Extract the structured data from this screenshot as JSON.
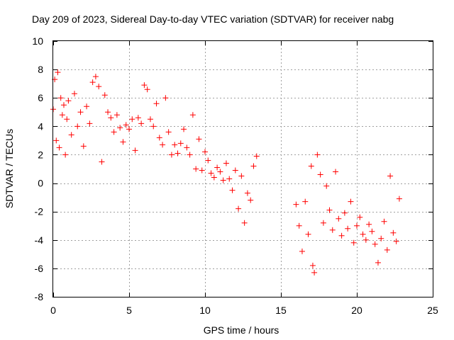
{
  "chart_data": {
    "type": "scatter",
    "title": "Day 209 of 2023, Sidereal Day-to-day VTEC variation (SDTVAR) for receiver nabg",
    "xlabel": "GPS time / hours",
    "ylabel": "SDTVAR / TECUs",
    "xlim": [
      0,
      25
    ],
    "ylim": [
      -8,
      10
    ],
    "xticks": [
      0,
      5,
      10,
      15,
      20,
      25
    ],
    "yticks": [
      -8,
      -6,
      -4,
      -2,
      0,
      2,
      4,
      6,
      8,
      10
    ],
    "grid": true,
    "marker": "+",
    "color": "#ff0000",
    "series": [
      {
        "name": "SDTVAR",
        "points": [
          [
            0.0,
            5.2
          ],
          [
            0.1,
            7.3
          ],
          [
            0.2,
            3.0
          ],
          [
            0.3,
            7.8
          ],
          [
            0.4,
            2.5
          ],
          [
            0.5,
            6.0
          ],
          [
            0.6,
            4.8
          ],
          [
            0.7,
            5.5
          ],
          [
            0.8,
            2.0
          ],
          [
            0.9,
            4.5
          ],
          [
            1.0,
            5.8
          ],
          [
            1.2,
            3.4
          ],
          [
            1.4,
            6.3
          ],
          [
            1.6,
            4.0
          ],
          [
            1.8,
            5.0
          ],
          [
            2.0,
            2.6
          ],
          [
            2.2,
            5.4
          ],
          [
            2.4,
            4.2
          ],
          [
            2.6,
            7.1
          ],
          [
            2.8,
            7.5
          ],
          [
            3.0,
            6.8
          ],
          [
            3.2,
            1.5
          ],
          [
            3.4,
            6.2
          ],
          [
            3.6,
            5.0
          ],
          [
            3.8,
            4.6
          ],
          [
            4.0,
            3.6
          ],
          [
            4.2,
            4.8
          ],
          [
            4.4,
            3.9
          ],
          [
            4.6,
            2.9
          ],
          [
            4.8,
            4.1
          ],
          [
            5.0,
            3.8
          ],
          [
            5.2,
            4.5
          ],
          [
            5.4,
            2.3
          ],
          [
            5.6,
            4.6
          ],
          [
            5.8,
            4.2
          ],
          [
            6.0,
            6.9
          ],
          [
            6.2,
            6.6
          ],
          [
            6.4,
            4.5
          ],
          [
            6.6,
            4.0
          ],
          [
            6.8,
            5.6
          ],
          [
            7.0,
            3.2
          ],
          [
            7.2,
            2.7
          ],
          [
            7.4,
            6.0
          ],
          [
            7.6,
            3.6
          ],
          [
            7.8,
            2.0
          ],
          [
            8.0,
            2.7
          ],
          [
            8.2,
            2.1
          ],
          [
            8.4,
            2.8
          ],
          [
            8.6,
            3.8
          ],
          [
            8.8,
            2.5
          ],
          [
            9.0,
            2.0
          ],
          [
            9.2,
            4.8
          ],
          [
            9.4,
            1.0
          ],
          [
            9.6,
            3.1
          ],
          [
            9.8,
            0.9
          ],
          [
            10.0,
            2.2
          ],
          [
            10.2,
            1.6
          ],
          [
            10.4,
            0.7
          ],
          [
            10.6,
            0.4
          ],
          [
            10.8,
            1.1
          ],
          [
            11.0,
            0.8
          ],
          [
            11.2,
            0.2
          ],
          [
            11.4,
            1.4
          ],
          [
            11.6,
            0.3
          ],
          [
            11.8,
            -0.5
          ],
          [
            12.0,
            0.9
          ],
          [
            12.2,
            -1.8
          ],
          [
            12.4,
            0.5
          ],
          [
            12.6,
            -2.8
          ],
          [
            12.8,
            -0.7
          ],
          [
            13.0,
            -1.2
          ],
          [
            13.2,
            1.2
          ],
          [
            13.4,
            1.9
          ],
          [
            16.0,
            -1.5
          ],
          [
            16.2,
            -3.0
          ],
          [
            16.4,
            -4.8
          ],
          [
            16.6,
            -1.3
          ],
          [
            16.8,
            -3.6
          ],
          [
            17.0,
            1.2
          ],
          [
            17.1,
            -5.8
          ],
          [
            17.2,
            -6.3
          ],
          [
            17.4,
            2.0
          ],
          [
            17.6,
            0.6
          ],
          [
            17.8,
            -2.8
          ],
          [
            18.0,
            -0.2
          ],
          [
            18.2,
            -1.9
          ],
          [
            18.4,
            -3.3
          ],
          [
            18.6,
            0.8
          ],
          [
            18.8,
            -2.5
          ],
          [
            19.0,
            -3.7
          ],
          [
            19.2,
            -2.1
          ],
          [
            19.4,
            -3.2
          ],
          [
            19.6,
            -1.3
          ],
          [
            19.8,
            -4.2
          ],
          [
            20.0,
            -3.0
          ],
          [
            20.2,
            -2.4
          ],
          [
            20.4,
            -3.6
          ],
          [
            20.6,
            -4.0
          ],
          [
            20.8,
            -2.9
          ],
          [
            21.0,
            -3.4
          ],
          [
            21.2,
            -4.3
          ],
          [
            21.4,
            -5.6
          ],
          [
            21.6,
            -3.9
          ],
          [
            21.8,
            -2.7
          ],
          [
            22.0,
            -4.7
          ],
          [
            22.2,
            0.5
          ],
          [
            22.4,
            -3.5
          ],
          [
            22.6,
            -4.1
          ],
          [
            22.8,
            -1.1
          ]
        ]
      }
    ]
  }
}
